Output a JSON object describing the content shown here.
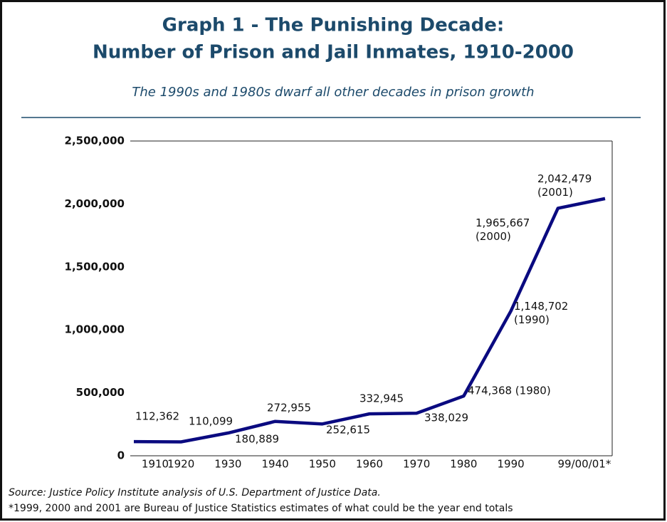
{
  "chart_data": {
    "type": "line",
    "title": [
      "Graph 1 - The Punishing Decade:",
      "Number of Prison and Jail Inmates, 1910-2000"
    ],
    "subtitle": "The 1990s and 1980s dwarf all other decades in prison growth",
    "source": "Source:  Justice Policy Institute analysis of U.S. Department of Justice Data.",
    "note": "*1999, 2000 and 2001 are Bureau of Justice Statistics estimates of what could be the year end totals",
    "categories": [
      "1910",
      "1920",
      "1930",
      "1940",
      "1950",
      "1960",
      "1970",
      "1980",
      "1990",
      null,
      "99/00/01*"
    ],
    "series": [
      {
        "name": "Inmates",
        "color": "#0a0a80",
        "values": [
          112362,
          110099,
          180889,
          272955,
          252615,
          332945,
          338029,
          474368,
          1148702,
          1965667,
          2042479
        ],
        "value_labels": [
          "112,362",
          "110,099",
          "180,889",
          "272,955",
          "252,615",
          "332,945",
          "338,029",
          "474,368 (1980)",
          "1,148,702 (1990)",
          "1,965,667 (2000)",
          "2,042,479 (2001)"
        ]
      }
    ],
    "ylim": [
      0,
      2500000
    ],
    "yticks": [
      0,
      {
        "value": 500000,
        "label": "500,000"
      },
      {
        "value": 1000000,
        "label": "1,000,000"
      },
      {
        "value": 1500000,
        "label": "1,500,000"
      },
      {
        "value": 2000000,
        "label": "2,000,000"
      },
      {
        "value": 2500000,
        "label": "2,500,000"
      }
    ]
  }
}
